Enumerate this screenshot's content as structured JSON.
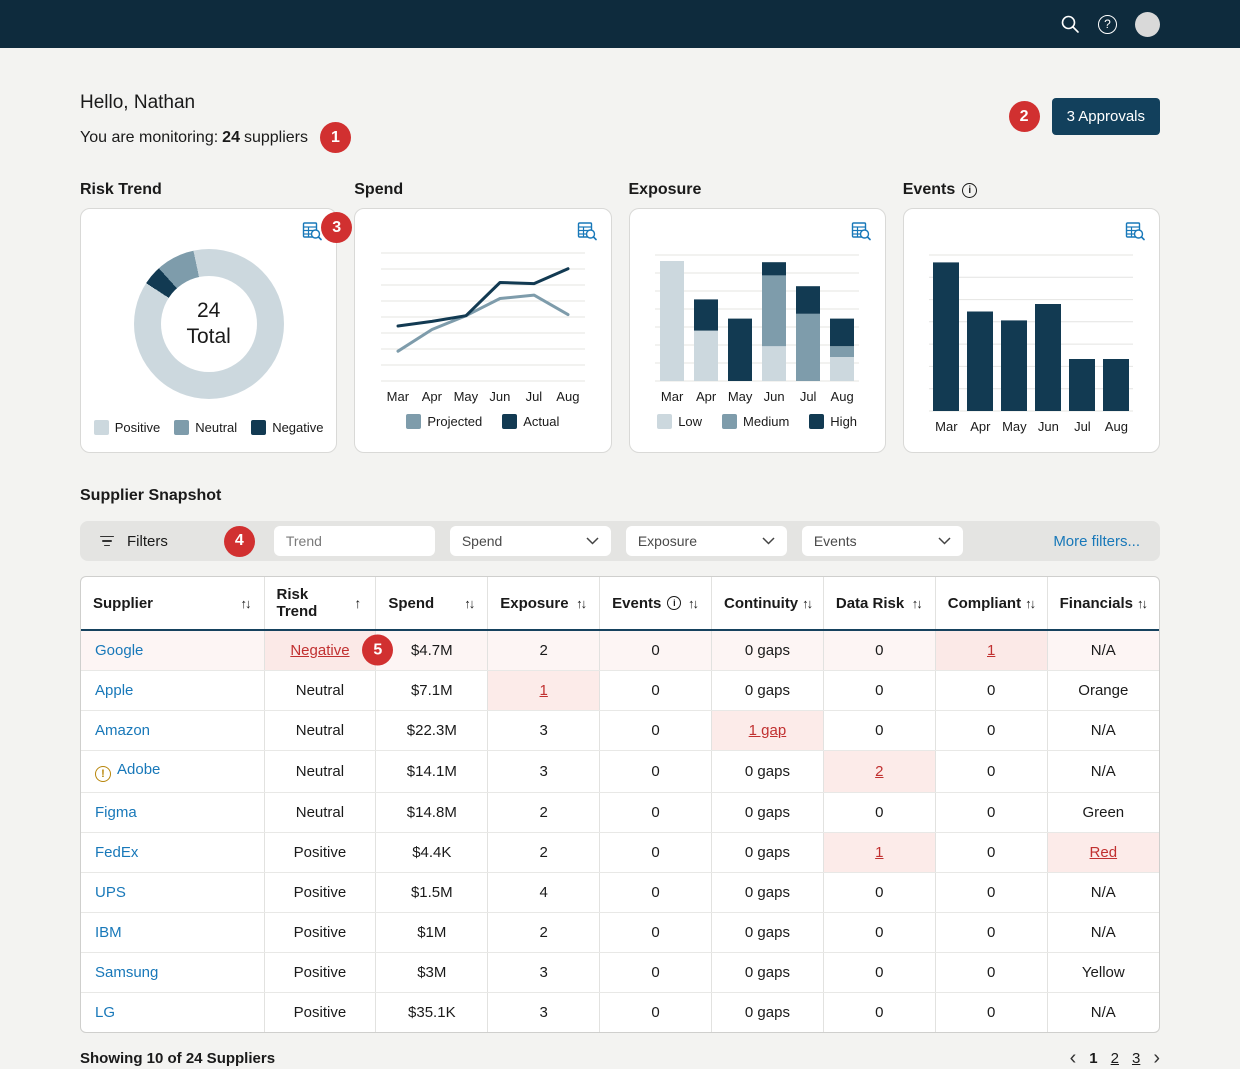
{
  "topbar": {
    "icons": [
      "search-icon",
      "help-icon",
      "avatar"
    ]
  },
  "header": {
    "greeting": "Hello, Nathan",
    "monitoring_prefix": "You are monitoring:",
    "monitoring_count": "24",
    "monitoring_suffix": "suppliers",
    "approvals_label": "3 Approvals"
  },
  "annotations": {
    "monitoring": "1",
    "approvals": "2",
    "risk_trend_card": "3",
    "filters": "4",
    "google_risk_cell": "5"
  },
  "cards": [
    {
      "title": "Risk Trend"
    },
    {
      "title": "Spend"
    },
    {
      "title": "Exposure"
    },
    {
      "title": "Events",
      "info": true
    }
  ],
  "chart_data": [
    {
      "type": "pie",
      "variant": "donut",
      "title": "Risk Trend",
      "labels": [
        "Positive",
        "Neutral",
        "Negative"
      ],
      "values": [
        21,
        2,
        1
      ],
      "colors": [
        "#ccd8de",
        "#7e9cab",
        "#123a52"
      ],
      "center_value": "24",
      "center_label": "Total",
      "legend_position": "bottom"
    },
    {
      "type": "line",
      "title": "Spend",
      "x": [
        "Mar",
        "Apr",
        "May",
        "Jun",
        "Jul",
        "Aug"
      ],
      "series": [
        {
          "name": "Projected",
          "color": "#7e9cab",
          "values": [
            26,
            45,
            57,
            72,
            75,
            58
          ]
        },
        {
          "name": "Actual",
          "color": "#123a52",
          "values": [
            48,
            52,
            57,
            86,
            85,
            98
          ]
        }
      ],
      "ylim": [
        0,
        110
      ],
      "grid": true,
      "legend_position": "bottom"
    },
    {
      "type": "bar",
      "variant": "stacked",
      "title": "Exposure",
      "categories": [
        "Mar",
        "Apr",
        "May",
        "Jun",
        "Jul",
        "Aug"
      ],
      "series": [
        {
          "name": "Low",
          "color": "#ccd8de",
          "values": [
            10,
            4.2,
            0,
            2.9,
            0,
            2
          ]
        },
        {
          "name": "Medium",
          "color": "#7e9cab",
          "values": [
            0,
            0,
            0,
            5.9,
            5.6,
            0.9
          ]
        },
        {
          "name": "High",
          "color": "#123a52",
          "values": [
            0,
            2.6,
            5.2,
            1.1,
            2.3,
            2.3
          ]
        }
      ],
      "ylim": [
        0,
        10.5
      ],
      "grid": true,
      "legend_position": "bottom"
    },
    {
      "type": "bar",
      "title": "Events",
      "categories": [
        "Mar",
        "Apr",
        "May",
        "Jun",
        "Jul",
        "Aug"
      ],
      "values": [
        10,
        6.7,
        6.1,
        7.2,
        3.5,
        3.5
      ],
      "color": "#123a52",
      "ylim": [
        0,
        10.5
      ],
      "grid": true
    }
  ],
  "filters": {
    "label": "Filters",
    "trend_placeholder": "Trend",
    "dropdowns": [
      "Spend",
      "Exposure",
      "Events"
    ],
    "more_label": "More filters..."
  },
  "table": {
    "columns": [
      {
        "label": "Supplier",
        "sort": "both"
      },
      {
        "label": "Risk Trend",
        "sort": "asc"
      },
      {
        "label": "Spend",
        "sort": "both"
      },
      {
        "label": "Exposure",
        "sort": "both"
      },
      {
        "label": "Events",
        "info": true,
        "sort": "both"
      },
      {
        "label": "Continuity",
        "sort": "both"
      },
      {
        "label": "Data Risk",
        "sort": "both"
      },
      {
        "label": "Compliant",
        "sort": "both"
      },
      {
        "label": "Financials",
        "sort": "both"
      }
    ],
    "rows": [
      {
        "supplier": "Google",
        "highlight": true,
        "cells": [
          {
            "v": "Negative",
            "flag": true
          },
          {
            "v": "$4.7M"
          },
          {
            "v": "2"
          },
          {
            "v": "0"
          },
          {
            "v": "0 gaps"
          },
          {
            "v": "0"
          },
          {
            "v": "1",
            "flag": true
          },
          {
            "v": "N/A"
          }
        ]
      },
      {
        "supplier": "Apple",
        "cells": [
          {
            "v": "Neutral"
          },
          {
            "v": "$7.1M"
          },
          {
            "v": "1",
            "flag": true
          },
          {
            "v": "0"
          },
          {
            "v": "0 gaps"
          },
          {
            "v": "0"
          },
          {
            "v": "0"
          },
          {
            "v": "Orange"
          }
        ]
      },
      {
        "supplier": "Amazon",
        "cells": [
          {
            "v": "Neutral"
          },
          {
            "v": "$22.3M"
          },
          {
            "v": "3"
          },
          {
            "v": "0"
          },
          {
            "v": "1 gap",
            "flag": true
          },
          {
            "v": "0"
          },
          {
            "v": "0"
          },
          {
            "v": "N/A"
          }
        ]
      },
      {
        "supplier": "Adobe",
        "alert_icon": true,
        "cells": [
          {
            "v": "Neutral"
          },
          {
            "v": "$14.1M"
          },
          {
            "v": "3"
          },
          {
            "v": "0"
          },
          {
            "v": "0 gaps"
          },
          {
            "v": "2",
            "flag": true
          },
          {
            "v": "0"
          },
          {
            "v": "N/A"
          }
        ]
      },
      {
        "supplier": "Figma",
        "cells": [
          {
            "v": "Neutral"
          },
          {
            "v": "$14.8M"
          },
          {
            "v": "2"
          },
          {
            "v": "0"
          },
          {
            "v": "0 gaps"
          },
          {
            "v": "0"
          },
          {
            "v": "0"
          },
          {
            "v": "Green"
          }
        ]
      },
      {
        "supplier": "FedEx",
        "cells": [
          {
            "v": "Positive"
          },
          {
            "v": "$4.4K"
          },
          {
            "v": "2"
          },
          {
            "v": "0"
          },
          {
            "v": "0 gaps"
          },
          {
            "v": "1",
            "flag": true
          },
          {
            "v": "0"
          },
          {
            "v": "Red",
            "flag": true
          }
        ]
      },
      {
        "supplier": "UPS",
        "cells": [
          {
            "v": "Positive"
          },
          {
            "v": "$1.5M"
          },
          {
            "v": "4"
          },
          {
            "v": "0"
          },
          {
            "v": "0 gaps"
          },
          {
            "v": "0"
          },
          {
            "v": "0"
          },
          {
            "v": "N/A"
          }
        ]
      },
      {
        "supplier": "IBM",
        "cells": [
          {
            "v": "Positive"
          },
          {
            "v": "$1M"
          },
          {
            "v": "2"
          },
          {
            "v": "0"
          },
          {
            "v": "0 gaps"
          },
          {
            "v": "0"
          },
          {
            "v": "0"
          },
          {
            "v": "N/A"
          }
        ]
      },
      {
        "supplier": "Samsung",
        "cells": [
          {
            "v": "Positive"
          },
          {
            "v": "$3M"
          },
          {
            "v": "3"
          },
          {
            "v": "0"
          },
          {
            "v": "0 gaps"
          },
          {
            "v": "0"
          },
          {
            "v": "0"
          },
          {
            "v": "Yellow"
          }
        ]
      },
      {
        "supplier": "LG",
        "cells": [
          {
            "v": "Positive"
          },
          {
            "v": "$35.1K"
          },
          {
            "v": "3"
          },
          {
            "v": "0"
          },
          {
            "v": "0 gaps"
          },
          {
            "v": "0"
          },
          {
            "v": "0"
          },
          {
            "v": "N/A"
          }
        ]
      }
    ]
  },
  "footer": {
    "summary": "Showing 10 of 24 Suppliers",
    "pages": [
      "1",
      "2",
      "3"
    ],
    "current_page": "1"
  },
  "icons": {
    "sort_both": "↑↓",
    "sort_asc": "↑",
    "info": "i",
    "alert": "!",
    "help": "?",
    "page_prev": "‹",
    "page_next": "›"
  },
  "theme": {
    "navy": "#12405c",
    "slate": "#7e9cab",
    "light_blue": "#ccd8de",
    "accent_blue": "#1878b9",
    "red_badge": "#d13030",
    "red_link": "#c13030",
    "pink_bg": "#fcebe9"
  }
}
